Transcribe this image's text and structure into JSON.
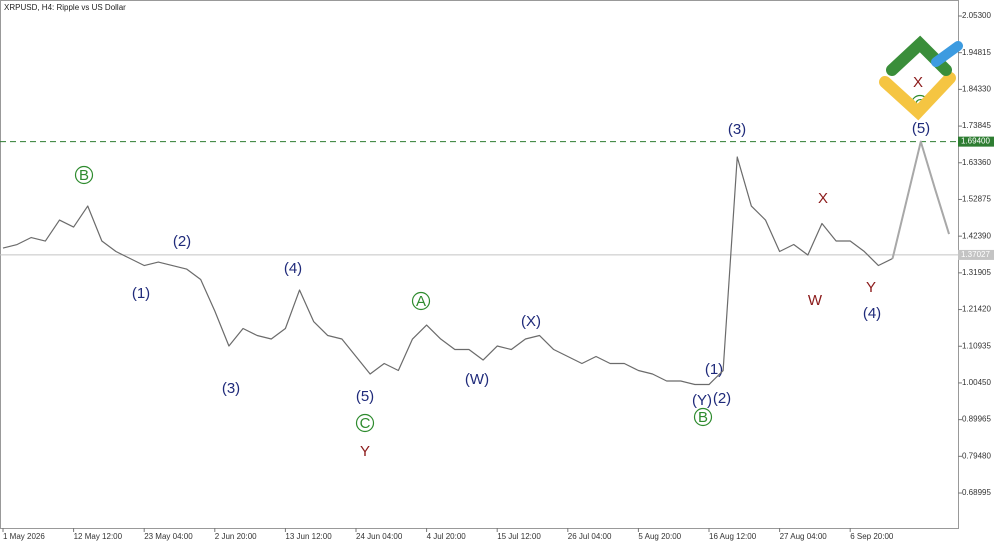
{
  "chart_data": {
    "type": "line",
    "title": "XRPUSD, H4:  Ripple vs US Dollar",
    "categories": [
      "1 May 2026",
      null,
      null,
      null,
      null,
      "12 May 12:00",
      null,
      null,
      null,
      null,
      "23 May 04:00",
      null,
      null,
      null,
      null,
      "2 Jun 20:00",
      null,
      null,
      null,
      null,
      "13 Jun 12:00",
      null,
      null,
      null,
      null,
      "24 Jun 04:00",
      null,
      null,
      null,
      null,
      "4 Jul 20:00",
      null,
      null,
      null,
      null,
      "15 Jul 12:00",
      null,
      null,
      null,
      null,
      "26 Jul 04:00",
      null,
      null,
      null,
      null,
      "5 Aug 20:00",
      null,
      null,
      null,
      null,
      "16 Aug 12:00",
      null,
      null,
      null,
      null,
      "27 Aug 04:00",
      null,
      null,
      null,
      null,
      "6 Sep 20:00",
      null,
      null,
      null,
      null,
      null,
      null,
      null
    ],
    "series": [
      {
        "color": "#6b6b6b",
        "values": [
          1.39,
          1.4,
          1.42,
          1.41,
          1.47,
          1.45,
          1.51,
          1.41,
          1.38,
          1.36,
          1.34,
          1.35,
          1.34,
          1.33,
          1.3,
          1.21,
          1.11,
          1.16,
          1.14,
          1.13,
          1.16,
          1.27,
          1.18,
          1.14,
          1.13,
          1.08,
          1.03,
          1.06,
          1.04,
          1.13,
          1.17,
          1.13,
          1.1,
          1.1,
          1.07,
          1.11,
          1.1,
          1.13,
          1.14,
          1.1,
          1.08,
          1.06,
          1.08,
          1.06,
          1.06,
          1.04,
          1.03,
          1.01,
          1.01,
          1.0,
          1.0,
          1.04,
          1.65,
          1.51,
          1.47,
          1.38,
          1.4,
          1.37,
          1.46,
          1.41,
          1.41,
          1.38,
          1.34,
          1.36,
          null,
          null,
          null,
          null
        ]
      },
      {
        "color": "#a8a8a8",
        "values": [
          null,
          null,
          null,
          null,
          null,
          null,
          null,
          null,
          null,
          null,
          null,
          null,
          null,
          null,
          null,
          null,
          null,
          null,
          null,
          null,
          null,
          null,
          null,
          null,
          null,
          null,
          null,
          null,
          null,
          null,
          null,
          null,
          null,
          null,
          null,
          null,
          null,
          null,
          null,
          null,
          null,
          null,
          null,
          null,
          null,
          null,
          null,
          null,
          null,
          null,
          null,
          null,
          null,
          null,
          null,
          null,
          null,
          null,
          null,
          null,
          null,
          null,
          null,
          1.36,
          1.527,
          1.694,
          1.56,
          1.43
        ]
      }
    ],
    "ylim": [
      0.59,
      2.0987
    ],
    "yticks": [
      {
        "value": 2.053,
        "label": "2.05300"
      },
      {
        "value": 1.94815,
        "label": "1.94815"
      },
      {
        "value": 1.8433,
        "label": "1.84330"
      },
      {
        "value": 1.73845,
        "label": "1.73845"
      },
      {
        "value": 1.6336,
        "label": "1.63360"
      },
      {
        "value": 1.52875,
        "label": "1.52875"
      },
      {
        "value": 1.4239,
        "label": "1.42390"
      },
      {
        "value": 1.31905,
        "label": "1.31905"
      },
      {
        "value": 1.2142,
        "label": "1.21420"
      },
      {
        "value": 1.10935,
        "label": "1.10935"
      },
      {
        "value": 1.0045,
        "label": "1.00450"
      },
      {
        "value": 0.89965,
        "label": "0.89965"
      },
      {
        "value": 0.7948,
        "label": "0.79480"
      },
      {
        "value": 0.68995,
        "label": "0.68995"
      }
    ],
    "levels": [
      {
        "value": 1.694,
        "label": "1.69400",
        "color": "#2e7d32",
        "style": "dashed"
      },
      {
        "value": 1.37027,
        "label": "1.37027",
        "color": "#c4c4c4",
        "style": "solid"
      }
    ],
    "annotations": [
      "B",
      "(2)",
      "(1)",
      "(3)",
      "(4)",
      "(5)",
      "C",
      "Y",
      "A",
      "(W)",
      "(X)",
      "(Y)",
      "(2)",
      "(1)",
      "B",
      "(3)",
      "X",
      "W",
      "Y",
      "(4)",
      "(5)",
      "X",
      "C"
    ]
  }
}
